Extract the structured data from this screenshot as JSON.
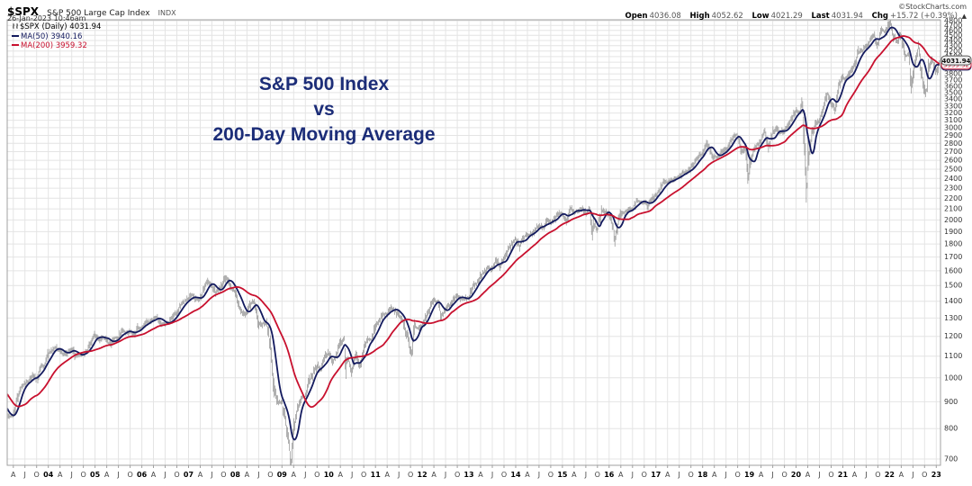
{
  "header": {
    "symbol": "$SPX",
    "name": "S&P 500 Large Cap Index",
    "exchange": "INDX",
    "datetime": "26-Jan-2023 10:46am",
    "copyright": "©StockCharts.com"
  },
  "quote": {
    "open_label": "Open",
    "open": "4036.08",
    "high_label": "High",
    "high": "4052.62",
    "low_label": "Low",
    "low": "4021.29",
    "last_label": "Last",
    "last": "4031.94",
    "chg_label": "Chg",
    "chg": "+15.72 (+0.39%)",
    "arrow": "▲"
  },
  "legend": {
    "spx": "$SPX (Daily) 4031.94",
    "ma50": "MA(50) 3940.16",
    "ma200": "MA(200) 3959.32"
  },
  "annotation": {
    "line1": "S&P 500 Index",
    "line2": "vs",
    "line3": "200-Day Moving Average"
  },
  "price_labels": {
    "last": "4031.94",
    "ma50": "3940.16",
    "ma200": "3959.32"
  },
  "colors": {
    "ma50": "#131a5e",
    "ma200": "#c8102e",
    "bars": "#7c7c7c",
    "grid": "#e4e4e4",
    "border": "#a0a0a0",
    "annotation": "#1c2d78",
    "axis_text": "#333333",
    "last_box_bg": "#eeeeee"
  },
  "chart_data": {
    "type": "line",
    "title": "S&P 500 Index vs 200-Day Moving Average",
    "log_scale": true,
    "x_range": [
      2003.12,
      2023.09
    ],
    "y_axis": {
      "ticks": [
        700,
        800,
        900,
        1000,
        1100,
        1200,
        1300,
        1400,
        1500,
        1600,
        1700,
        1800,
        1900,
        2000,
        2100,
        2200,
        2300,
        2400,
        2500,
        2600,
        2700,
        2800,
        2900,
        3000,
        3100,
        3200,
        3300,
        3400,
        3500,
        3600,
        3700,
        3800,
        3900,
        4000,
        4100,
        4200,
        4300,
        4400,
        4500,
        4600,
        4700,
        4800
      ]
    },
    "x_ticks": {
      "start_t": 2003.25,
      "step": 0.25,
      "labels": [
        "A",
        "J",
        "O",
        "04",
        "A",
        "J",
        "O",
        "05",
        "A",
        "J",
        "O",
        "06",
        "A",
        "J",
        "O",
        "07",
        "A",
        "J",
        "O",
        "08",
        "A",
        "J",
        "O",
        "09",
        "A",
        "J",
        "O",
        "10",
        "A",
        "J",
        "O",
        "11",
        "A",
        "J",
        "O",
        "12",
        "A",
        "J",
        "O",
        "13",
        "A",
        "J",
        "O",
        "14",
        "A",
        "J",
        "O",
        "15",
        "A",
        "J",
        "O",
        "16",
        "A",
        "J",
        "O",
        "17",
        "A",
        "J",
        "O",
        "18",
        "A",
        "J",
        "O",
        "19",
        "A",
        "J",
        "O",
        "20",
        "A",
        "J",
        "O",
        "21",
        "A",
        "J",
        "O",
        "22",
        "A",
        "J",
        "O",
        "23"
      ]
    },
    "series": [
      {
        "name": "$SPX",
        "style": "price-bars",
        "monthly": {
          "t0": 2002.0833,
          "dt": 0.0833333,
          "values": [
            1130,
            1107,
            1147,
            1077,
            1067,
            990,
            912,
            916,
            815,
            886,
            936,
            880,
            856,
            841,
            848,
            917,
            964,
            975,
            990,
            1008,
            996,
            1051,
            1058,
            1112,
            1131,
            1145,
            1126,
            1107,
            1121,
            1141,
            1102,
            1104,
            1115,
            1130,
            1174,
            1212,
            1181,
            1204,
            1181,
            1157,
            1192,
            1191,
            1234,
            1220,
            1229,
            1207,
            1249,
            1248,
            1280,
            1281,
            1295,
            1311,
            1270,
            1270,
            1277,
            1304,
            1336,
            1378,
            1401,
            1418,
            1438,
            1407,
            1421,
            1482,
            1531,
            1503,
            1455,
            1474,
            1527,
            1549,
            1481,
            1468,
            1379,
            1331,
            1323,
            1386,
            1400,
            1280,
            1267,
            1283,
            1166,
            969,
            896,
            903,
            826,
            735,
            798,
            873,
            919,
            919,
            987,
            1021,
            1057,
            1036,
            1096,
            1115,
            1074,
            1104,
            1169,
            1187,
            1089,
            1031,
            1102,
            1049,
            1141,
            1183,
            1181,
            1258,
            1286,
            1327,
            1326,
            1364,
            1345,
            1321,
            1292,
            1219,
            1131,
            1253,
            1247,
            1258,
            1312,
            1366,
            1408,
            1398,
            1310,
            1362,
            1379,
            1407,
            1441,
            1412,
            1416,
            1426,
            1498,
            1515,
            1569,
            1598,
            1631,
            1606,
            1686,
            1633,
            1682,
            1757,
            1806,
            1848,
            1783,
            1859,
            1872,
            1884,
            1924,
            1960,
            1931,
            2003,
            1972,
            2018,
            2068,
            2059,
            1995,
            2105,
            2068,
            2086,
            2107,
            2063,
            2104,
            1972,
            1920,
            2079,
            2080,
            2044,
            1940,
            1932,
            2060,
            2065,
            2097,
            2099,
            2174,
            2171,
            2168,
            2126,
            2199,
            2239,
            2279,
            2364,
            2363,
            2384,
            2412,
            2423,
            2470,
            2472,
            2519,
            2575,
            2648,
            2674,
            2824,
            2714,
            2641,
            2648,
            2705,
            2718,
            2816,
            2902,
            2914,
            2712,
            2760,
            2507,
            2704,
            2784,
            2834,
            2946,
            2752,
            2942,
            2980,
            2926,
            2977,
            3038,
            3141,
            3231,
            3226,
            2954,
            2585,
            2912,
            3044,
            3100,
            3271,
            3500,
            3363,
            3270,
            3622,
            3756,
            3714,
            3811,
            3973,
            4181,
            4204,
            4298,
            4395,
            4523,
            4308,
            4605,
            4567,
            4766,
            4516,
            4374,
            4530,
            4132,
            4132,
            3785,
            4130,
            3955,
            3586,
            3872,
            4080,
            3840,
            4032
          ]
        },
        "extra_points": [
          [
            2007.79,
            1565
          ],
          [
            2009.19,
            676
          ],
          [
            2010.37,
            1066
          ],
          [
            2011.77,
            1099
          ],
          [
            2015.64,
            1867
          ],
          [
            2016.12,
            1829
          ],
          [
            2018.98,
            2351
          ],
          [
            2020.13,
            3386
          ],
          [
            2020.23,
            2192
          ],
          [
            2022.01,
            4797
          ],
          [
            2022.47,
            3636
          ],
          [
            2022.63,
            4305
          ],
          [
            2022.79,
            3491
          ]
        ]
      },
      {
        "name": "MA(50)",
        "derived": "sma",
        "window_weeks": 10,
        "last": 3940.16
      },
      {
        "name": "MA(200)",
        "derived": "sma",
        "window_weeks": 43,
        "last": 3959.32
      }
    ]
  }
}
